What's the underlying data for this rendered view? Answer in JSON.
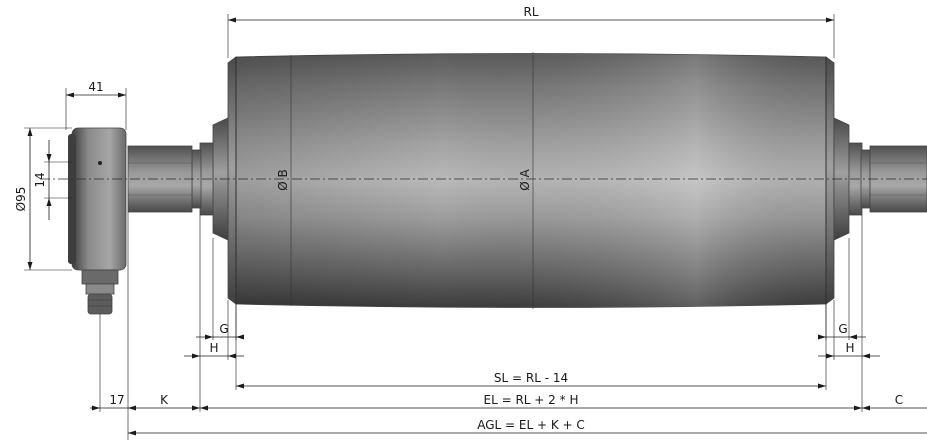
{
  "dimensions": {
    "rl": "RL",
    "d41": "41",
    "d95": "Ø95",
    "d14": "14",
    "diam_b": "Ø B",
    "diam_a": "Ø A",
    "g_left": "G",
    "g_right": "G",
    "h_left": "H",
    "h_right": "H",
    "sl": "SL = RL - 14",
    "d17": "17",
    "k": "K",
    "el": "EL = RL + 2 * H",
    "c": "C",
    "agl": "AGL = EL + K + C"
  }
}
